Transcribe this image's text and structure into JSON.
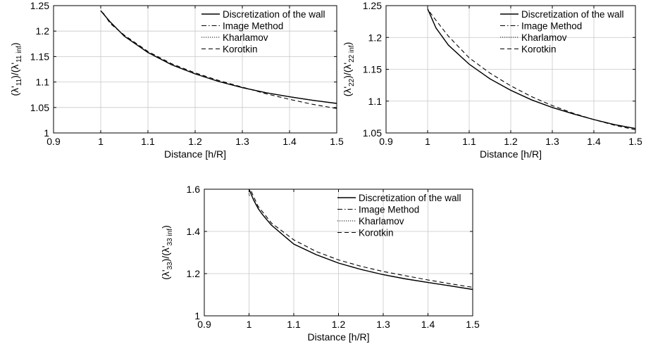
{
  "chart_data": [
    {
      "type": "line",
      "xlabel": "Distance [h/R]",
      "ylabel": "(λ'11)/(λ'11 inf)",
      "ylabel_parts": {
        "open": "(λ'",
        "sub1": "11",
        "mid": ")/(λ'",
        "sub2": "11 inf",
        "close": ")"
      },
      "xlim": [
        0.9,
        1.5
      ],
      "ylim": [
        1.0,
        1.25
      ],
      "xticks": [
        "0.9",
        "1",
        "1.1",
        "1.2",
        "1.3",
        "1.4",
        "1.5"
      ],
      "yticks": [
        "1",
        "1.05",
        "1.1",
        "1.15",
        "1.2",
        "1.25"
      ],
      "grid": true,
      "legend_position": "top-right",
      "series": [
        {
          "name": "Discretization of the wall",
          "style": "solid",
          "x": [
            1.0,
            1.02,
            1.05,
            1.1,
            1.15,
            1.2,
            1.25,
            1.3,
            1.35,
            1.4,
            1.45,
            1.5
          ],
          "y": [
            1.24,
            1.218,
            1.19,
            1.158,
            1.134,
            1.116,
            1.101,
            1.089,
            1.079,
            1.071,
            1.064,
            1.058
          ]
        },
        {
          "name": "Image Method",
          "style": "dashdot",
          "x": [
            1.0,
            1.02,
            1.05,
            1.1,
            1.15,
            1.2,
            1.25,
            1.3,
            1.35,
            1.4,
            1.45,
            1.5
          ],
          "y": [
            1.24,
            1.218,
            1.19,
            1.158,
            1.134,
            1.116,
            1.101,
            1.089,
            1.079,
            1.071,
            1.064,
            1.058
          ]
        },
        {
          "name": "Kharlamov",
          "style": "dotted",
          "x": [
            1.0,
            1.02,
            1.05,
            1.1,
            1.15,
            1.2,
            1.25,
            1.3,
            1.35,
            1.4,
            1.45,
            1.5
          ],
          "y": [
            1.24,
            1.218,
            1.19,
            1.158,
            1.134,
            1.116,
            1.101,
            1.089,
            1.079,
            1.071,
            1.064,
            1.058
          ]
        },
        {
          "name": "Korotkin",
          "style": "dashed",
          "x": [
            1.005,
            1.02,
            1.05,
            1.1,
            1.15,
            1.2,
            1.25,
            1.3,
            1.35,
            1.4,
            1.45,
            1.5
          ],
          "y": [
            1.236,
            1.215,
            1.192,
            1.16,
            1.136,
            1.118,
            1.103,
            1.09,
            1.077,
            1.066,
            1.056,
            1.048
          ]
        }
      ]
    },
    {
      "type": "line",
      "xlabel": "Distance [h/R]",
      "ylabel": "(λ'22)/(λ'22 inf)",
      "ylabel_parts": {
        "open": "(λ'",
        "sub1": "22",
        "mid": ")/(λ'",
        "sub2": "22 inf",
        "close": ")"
      },
      "xlim": [
        0.9,
        1.5
      ],
      "ylim": [
        1.05,
        1.25
      ],
      "xticks": [
        "0.9",
        "1",
        "1.1",
        "1.2",
        "1.3",
        "1.4",
        "1.5"
      ],
      "yticks": [
        "1.05",
        "1.1",
        "1.15",
        "1.2",
        "1.25"
      ],
      "grid": true,
      "legend_position": "top-right",
      "series": [
        {
          "name": "Discretization of the wall",
          "style": "solid",
          "x": [
            1.0,
            1.02,
            1.05,
            1.1,
            1.15,
            1.2,
            1.25,
            1.3,
            1.35,
            1.4,
            1.45,
            1.5
          ],
          "y": [
            1.245,
            1.215,
            1.188,
            1.158,
            1.135,
            1.117,
            1.102,
            1.09,
            1.08,
            1.071,
            1.063,
            1.057
          ]
        },
        {
          "name": "Image Method",
          "style": "dashdot",
          "x": [
            1.0,
            1.02,
            1.05,
            1.1,
            1.15,
            1.2,
            1.25,
            1.3,
            1.35,
            1.4,
            1.45,
            1.5
          ],
          "y": [
            1.245,
            1.215,
            1.188,
            1.158,
            1.135,
            1.117,
            1.102,
            1.09,
            1.08,
            1.071,
            1.063,
            1.057
          ]
        },
        {
          "name": "Kharlamov",
          "style": "dotted",
          "x": [
            1.0,
            1.02,
            1.05,
            1.1,
            1.15,
            1.2,
            1.25,
            1.3,
            1.35,
            1.4,
            1.45,
            1.5
          ],
          "y": [
            1.245,
            1.215,
            1.188,
            1.158,
            1.135,
            1.117,
            1.102,
            1.09,
            1.08,
            1.071,
            1.063,
            1.057
          ]
        },
        {
          "name": "Korotkin",
          "style": "dashed",
          "x": [
            1.005,
            1.02,
            1.05,
            1.1,
            1.15,
            1.2,
            1.25,
            1.3,
            1.35,
            1.4,
            1.45,
            1.5
          ],
          "y": [
            1.24,
            1.227,
            1.202,
            1.168,
            1.144,
            1.124,
            1.107,
            1.093,
            1.081,
            1.071,
            1.062,
            1.055
          ]
        }
      ]
    },
    {
      "type": "line",
      "xlabel": "Distance [h/R]",
      "ylabel": "(λ'33)/(λ'33 inf)",
      "ylabel_parts": {
        "open": "(λ'",
        "sub1": "33",
        "mid": ")/(λ'",
        "sub2": "33 inf",
        "close": ")"
      },
      "xlim": [
        0.9,
        1.5
      ],
      "ylim": [
        1.0,
        1.6
      ],
      "xticks": [
        "0.9",
        "1",
        "1.1",
        "1.2",
        "1.3",
        "1.4",
        "1.5"
      ],
      "yticks": [
        "1",
        "1.2",
        "1.4",
        "1.6"
      ],
      "grid": true,
      "legend_position": "top-right",
      "series": [
        {
          "name": "Discretization of the wall",
          "style": "solid",
          "x": [
            1.0,
            1.01,
            1.02,
            1.03,
            1.05,
            1.1,
            1.15,
            1.2,
            1.25,
            1.3,
            1.35,
            1.4,
            1.45,
            1.5
          ],
          "y": [
            1.6,
            1.55,
            1.51,
            1.48,
            1.43,
            1.34,
            1.29,
            1.25,
            1.22,
            1.195,
            1.175,
            1.158,
            1.142,
            1.125
          ]
        },
        {
          "name": "Image Method",
          "style": "dashdot",
          "x": [
            1.0,
            1.01,
            1.02,
            1.03,
            1.05,
            1.1,
            1.15,
            1.2,
            1.25,
            1.3,
            1.35,
            1.4,
            1.45,
            1.5
          ],
          "y": [
            1.6,
            1.55,
            1.51,
            1.48,
            1.43,
            1.34,
            1.29,
            1.25,
            1.22,
            1.195,
            1.175,
            1.158,
            1.142,
            1.125
          ]
        },
        {
          "name": "Kharlamov",
          "style": "dotted",
          "x": [
            1.0,
            1.0,
            1.005,
            1.01,
            1.02,
            1.03,
            1.05,
            1.1,
            1.15,
            1.2,
            1.25,
            1.3,
            1.35,
            1.4,
            1.45,
            1.5
          ],
          "y": [
            1.6,
            1.57,
            1.575,
            1.55,
            1.51,
            1.48,
            1.43,
            1.34,
            1.29,
            1.25,
            1.22,
            1.195,
            1.175,
            1.158,
            1.142,
            1.125
          ]
        },
        {
          "name": "Korotkin",
          "style": "dashed",
          "x": [
            1.005,
            1.02,
            1.05,
            1.1,
            1.15,
            1.2,
            1.25,
            1.3,
            1.35,
            1.4,
            1.45,
            1.5
          ],
          "y": [
            1.59,
            1.52,
            1.44,
            1.36,
            1.305,
            1.265,
            1.235,
            1.21,
            1.19,
            1.17,
            1.152,
            1.135
          ]
        }
      ]
    }
  ]
}
